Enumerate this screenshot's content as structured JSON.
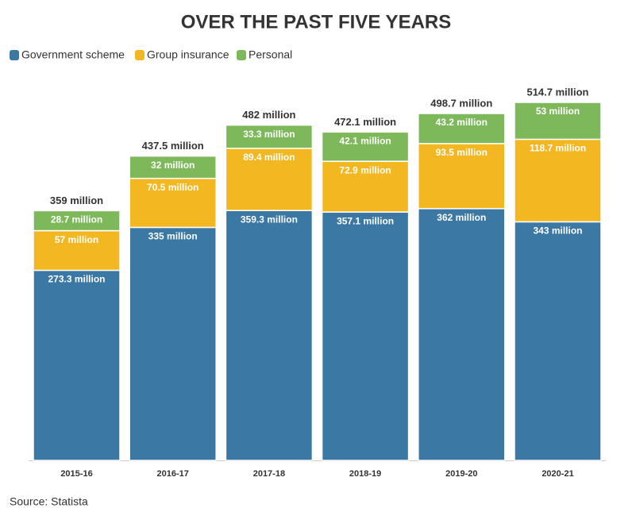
{
  "chart_data": {
    "type": "stacked-bar",
    "title": "OVER THE PAST FIVE YEARS",
    "categories": [
      "2015-16",
      "2016-17",
      "2017-18",
      "2018-19",
      "2019-20",
      "2020-21"
    ],
    "series": [
      {
        "name": "Government scheme",
        "color": "#3b78a4",
        "values": [
          273.3,
          335,
          359.3,
          357.1,
          362,
          343
        ],
        "value_labels": [
          "273.3 million",
          "335 million",
          "359.3 million",
          "357.1 million",
          "362 million",
          "343 million"
        ]
      },
      {
        "name": "Group insurance",
        "color": "#f2b721",
        "values": [
          57,
          70.5,
          89.4,
          72.9,
          93.5,
          118.7
        ],
        "value_labels": [
          "57 million",
          "70.5 million",
          "89.4 million",
          "72.9 million",
          "93.5 million",
          "118.7 million"
        ]
      },
      {
        "name": "Personal",
        "color": "#7db85a",
        "values": [
          28.7,
          32,
          33.3,
          42.1,
          43.2,
          53
        ],
        "value_labels": [
          "28.7 million",
          "32 million",
          "33.3 million",
          "42.1 million",
          "43.2 million",
          "53 million"
        ]
      }
    ],
    "totals": {
      "values": [
        359,
        437.5,
        482,
        472.1,
        498.7,
        514.7
      ],
      "value_labels": [
        "359 million",
        "437.5 million",
        "482 million",
        "472.1 million",
        "498.7 million",
        "514.7 million"
      ]
    },
    "source": "Source: Statista"
  }
}
